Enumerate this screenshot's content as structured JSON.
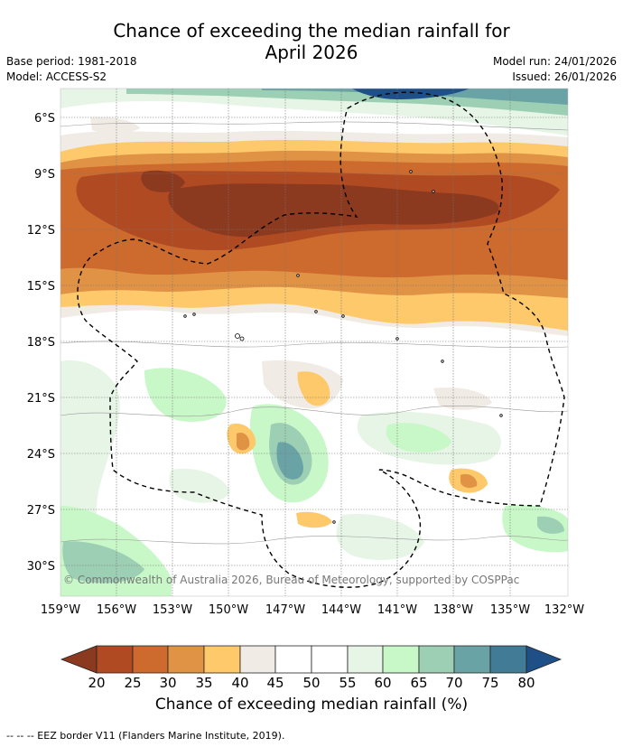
{
  "title_line1": "Chance of exceeding the median rainfall for",
  "title_line2": "April 2026",
  "base_period": "Base period: 1981-2018",
  "model": "Model: ACCESS-S2",
  "model_run": "Model run: 24/01/2026",
  "issued": "Issued: 26/01/2026",
  "copyright": "© Commonwealth of Australia 2026, Bureau of Meteorology, supported by COSPPac",
  "footer": "-- -- -- EEZ border V11 (Flanders Marine Institute, 2019).",
  "colorbar_title": "Chance of exceeding median rainfall (%)",
  "colorbar": {
    "ticks": [
      "20",
      "25",
      "30",
      "35",
      "40",
      "45",
      "50",
      "55",
      "60",
      "65",
      "70",
      "75",
      "80"
    ],
    "colors": [
      "#8c3a1f",
      "#b04a22",
      "#cd6a2e",
      "#e09245",
      "#fdc96b",
      "#f1ebe5",
      "#ffffff",
      "#ffffff",
      "#e6f5e6",
      "#c8f7c8",
      "#9ccfb4",
      "#6aa3a6",
      "#417b95",
      "#1e4f86"
    ]
  },
  "chart_data": {
    "type": "heatmap",
    "x_ticks": [
      "159°W",
      "156°W",
      "153°W",
      "150°W",
      "147°W",
      "144°W",
      "141°W",
      "138°W",
      "135°W",
      "132°W"
    ],
    "y_ticks": [
      "6°S",
      "9°S",
      "12°S",
      "15°S",
      "18°S",
      "21°S",
      "24°S",
      "27°S",
      "30°S"
    ],
    "xlim": [
      -159,
      -132
    ],
    "ylim": [
      -31.5,
      -4.5
    ],
    "grid": true
  }
}
